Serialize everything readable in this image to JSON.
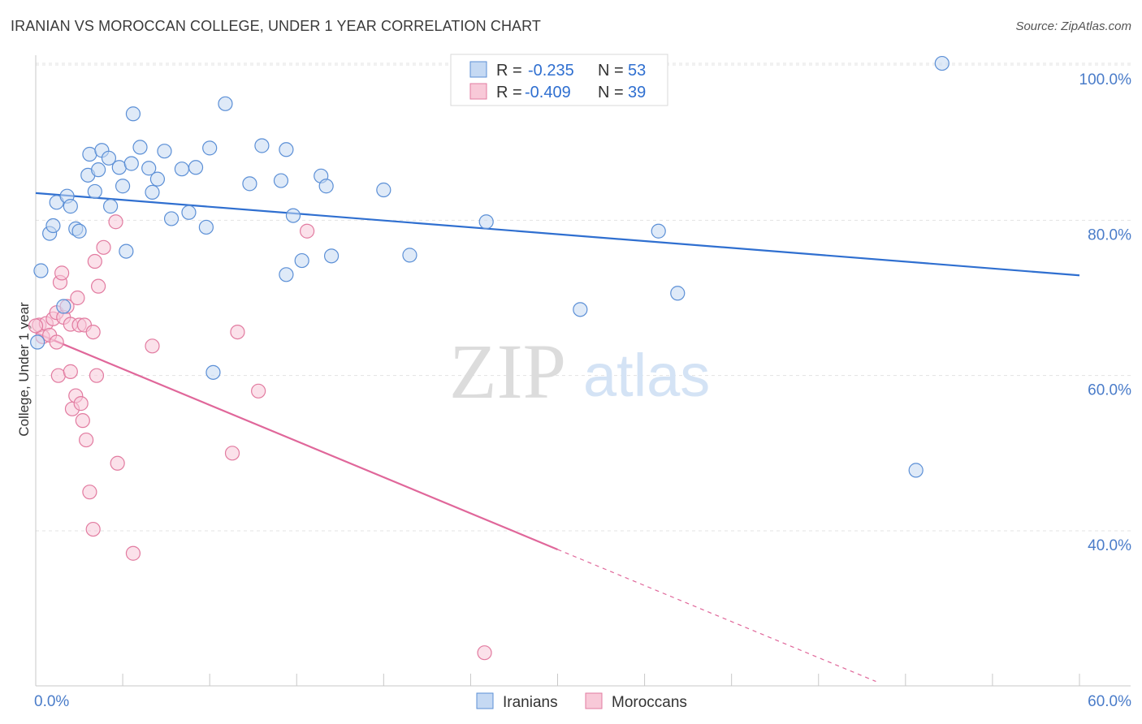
{
  "title": "IRANIAN VS MOROCCAN COLLEGE, UNDER 1 YEAR CORRELATION CHART",
  "source": "Source: ZipAtlas.com",
  "watermark": {
    "zip": "ZIP",
    "atlas": "atlas"
  },
  "legend": {
    "r_label": "R =",
    "n_label": "N =",
    "rows": [
      {
        "r": "-0.235",
        "n": "53"
      },
      {
        "r": "-0.409",
        "n": "39"
      }
    ]
  },
  "chart_data": {
    "type": "scatter",
    "title": "IRANIAN VS MOROCCAN COLLEGE, UNDER 1 YEAR CORRELATION CHART",
    "xlabel": "",
    "ylabel": "College, Under 1 year",
    "xlim": [
      0,
      60
    ],
    "ylim": [
      20,
      102
    ],
    "x_tick_labels": [
      "0.0%",
      "60.0%"
    ],
    "y_ticks": [
      40,
      60,
      80,
      100
    ],
    "y_tick_labels": [
      "40.0%",
      "60.0%",
      "80.0%",
      "100.0%"
    ],
    "grid": true,
    "legend_position": "top-center",
    "colors": {
      "Iranians": "#5b8fd6",
      "Moroccans": "#e27ba0",
      "blue_line": "#2f6fd0",
      "pink_line": "#e0679a"
    },
    "series": [
      {
        "name": "Iranians",
        "points": [
          [
            0.3,
            73.5
          ],
          [
            0.8,
            78.3
          ],
          [
            1.0,
            79.3
          ],
          [
            1.2,
            82.3
          ],
          [
            1.8,
            83.1
          ],
          [
            2.0,
            81.8
          ],
          [
            2.3,
            78.9
          ],
          [
            2.5,
            78.6
          ],
          [
            3.1,
            88.5
          ],
          [
            3.0,
            85.8
          ],
          [
            3.4,
            83.7
          ],
          [
            3.6,
            86.5
          ],
          [
            3.8,
            89.0
          ],
          [
            4.2,
            88.0
          ],
          [
            4.3,
            81.8
          ],
          [
            4.8,
            86.8
          ],
          [
            5.0,
            84.4
          ],
          [
            5.2,
            76.0
          ],
          [
            5.5,
            87.3
          ],
          [
            5.6,
            93.7
          ],
          [
            6.0,
            89.4
          ],
          [
            6.5,
            86.7
          ],
          [
            6.7,
            83.6
          ],
          [
            7.0,
            85.3
          ],
          [
            7.4,
            88.9
          ],
          [
            7.8,
            80.2
          ],
          [
            8.4,
            86.6
          ],
          [
            8.8,
            81.0
          ],
          [
            9.2,
            86.8
          ],
          [
            9.8,
            79.1
          ],
          [
            10.0,
            89.3
          ],
          [
            10.2,
            60.4
          ],
          [
            10.9,
            95.0
          ],
          [
            12.3,
            84.7
          ],
          [
            13.0,
            89.6
          ],
          [
            14.1,
            85.1
          ],
          [
            14.4,
            89.1
          ],
          [
            14.4,
            73.0
          ],
          [
            14.8,
            80.6
          ],
          [
            15.3,
            74.8
          ],
          [
            16.4,
            85.7
          ],
          [
            16.7,
            84.4
          ],
          [
            17.0,
            75.4
          ],
          [
            20.0,
            83.9
          ],
          [
            21.5,
            75.5
          ],
          [
            25.9,
            79.8
          ],
          [
            31.3,
            68.5
          ],
          [
            35.8,
            78.6
          ],
          [
            36.9,
            70.6
          ],
          [
            50.6,
            47.8
          ],
          [
            52.1,
            100.2
          ],
          [
            0.1,
            64.3
          ],
          [
            1.6,
            68.9
          ]
        ]
      },
      {
        "name": "Moroccans",
        "points": [
          [
            0.2,
            66.5
          ],
          [
            0.4,
            65.0
          ],
          [
            0.6,
            66.7
          ],
          [
            0.8,
            65.2
          ],
          [
            1.0,
            67.3
          ],
          [
            1.2,
            68.1
          ],
          [
            1.2,
            64.3
          ],
          [
            1.3,
            60.0
          ],
          [
            1.4,
            72.0
          ],
          [
            1.5,
            73.2
          ],
          [
            1.6,
            67.5
          ],
          [
            1.8,
            68.9
          ],
          [
            2.0,
            66.6
          ],
          [
            2.0,
            60.5
          ],
          [
            2.1,
            55.7
          ],
          [
            2.3,
            57.4
          ],
          [
            2.4,
            70.0
          ],
          [
            2.5,
            66.5
          ],
          [
            2.6,
            56.4
          ],
          [
            2.7,
            54.2
          ],
          [
            2.8,
            66.5
          ],
          [
            2.9,
            51.7
          ],
          [
            3.1,
            45.0
          ],
          [
            3.3,
            65.6
          ],
          [
            3.3,
            40.2
          ],
          [
            3.4,
            74.7
          ],
          [
            3.5,
            60.0
          ],
          [
            3.6,
            71.5
          ],
          [
            3.9,
            76.5
          ],
          [
            4.6,
            79.8
          ],
          [
            4.7,
            48.7
          ],
          [
            5.6,
            37.1
          ],
          [
            6.7,
            63.8
          ],
          [
            11.3,
            50.0
          ],
          [
            11.6,
            65.6
          ],
          [
            12.8,
            58.0
          ],
          [
            15.6,
            78.6
          ],
          [
            25.8,
            24.3
          ],
          [
            0.0,
            66.4
          ]
        ]
      }
    ],
    "trend_lines": [
      {
        "series": "Iranians",
        "x": [
          0,
          60
        ],
        "y": [
          83.5,
          72.9
        ]
      },
      {
        "series": "Moroccans",
        "x": [
          0,
          30.0
        ],
        "y": [
          65.5,
          37.6
        ],
        "dashed_extension_to": [
          48.3,
          20.6
        ]
      }
    ]
  }
}
